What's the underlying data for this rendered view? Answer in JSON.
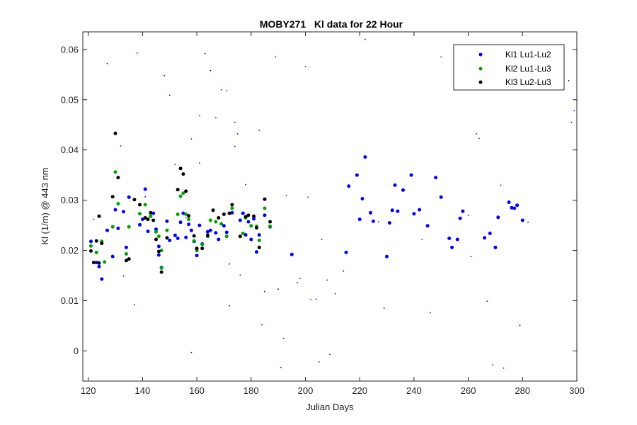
{
  "chart_data": {
    "type": "scatter",
    "title": "MOBY271   Kl data for 22 Hour",
    "xlabel": "Julian Days",
    "ylabel": "Kl (1/m) @ 443 nm",
    "xlim": [
      118,
      300
    ],
    "ylim": [
      -0.006,
      0.0635
    ],
    "xticks": [
      120,
      140,
      160,
      180,
      200,
      220,
      240,
      260,
      280,
      300
    ],
    "yticks": [
      0,
      0.01,
      0.02,
      0.03,
      0.04,
      0.05,
      0.06
    ],
    "xtick_labels": [
      "120",
      "140",
      "160",
      "180",
      "200",
      "220",
      "240",
      "260",
      "280",
      "300"
    ],
    "ytick_labels": [
      "0",
      "0.01",
      "0.02",
      "0.03",
      "0.04",
      "0.05",
      "0.06"
    ],
    "grid": false,
    "legend_position": "top-right",
    "series": [
      {
        "name": "Kl1 Lu1-Lu2",
        "color": "#0000ff",
        "points": [
          [
            121,
            0.0218
          ],
          [
            123,
            0.0176
          ],
          [
            124,
            0.0168
          ],
          [
            125,
            0.0143
          ],
          [
            127,
            0.024
          ],
          [
            129,
            0.0188
          ],
          [
            130,
            0.0281
          ],
          [
            131,
            0.0244
          ],
          [
            133,
            0.0277
          ],
          [
            134,
            0.0206
          ],
          [
            135,
            0.0306
          ],
          [
            139,
            0.0251
          ],
          [
            140,
            0.0262
          ],
          [
            141,
            0.0322
          ],
          [
            142,
            0.0238
          ],
          [
            144,
            0.0274
          ],
          [
            145,
            0.0242
          ],
          [
            146,
            0.0208
          ],
          [
            146,
            0.0191
          ],
          [
            147,
            0.0166
          ],
          [
            149,
            0.0258
          ],
          [
            150,
            0.022
          ],
          [
            152,
            0.023
          ],
          [
            153,
            0.0224
          ],
          [
            154,
            0.0256
          ],
          [
            155,
            0.0274
          ],
          [
            156,
            0.0226
          ],
          [
            157,
            0.0252
          ],
          [
            158,
            0.024
          ],
          [
            159,
            0.0218
          ],
          [
            160,
            0.019
          ],
          [
            161,
            0.025
          ],
          [
            162,
            0.0213
          ],
          [
            164,
            0.0237
          ],
          [
            165,
            0.024
          ],
          [
            167,
            0.0235
          ],
          [
            168,
            0.0222
          ],
          [
            170,
            0.0249
          ],
          [
            171,
            0.0236
          ],
          [
            173,
            0.0275
          ],
          [
            176,
            0.026
          ],
          [
            177,
            0.0274
          ],
          [
            178,
            0.0231
          ],
          [
            179,
            0.0257
          ],
          [
            180,
            0.0222
          ],
          [
            181,
            0.0263
          ],
          [
            182,
            0.0197
          ],
          [
            183,
            0.0231
          ],
          [
            185,
            0.027
          ],
          [
            187,
            0.0247
          ],
          [
            195,
            0.0192
          ],
          [
            215,
            0.0196
          ],
          [
            216,
            0.0328
          ],
          [
            219,
            0.035
          ],
          [
            220,
            0.0262
          ],
          [
            221,
            0.0303
          ],
          [
            222,
            0.0386
          ],
          [
            224,
            0.0275
          ],
          [
            225,
            0.0258
          ],
          [
            230,
            0.0188
          ],
          [
            231,
            0.0255
          ],
          [
            232,
            0.028
          ],
          [
            233,
            0.033
          ],
          [
            234,
            0.0278
          ],
          [
            236,
            0.032
          ],
          [
            239,
            0.035
          ],
          [
            240,
            0.0273
          ],
          [
            242,
            0.0281
          ],
          [
            245,
            0.0249
          ],
          [
            248,
            0.0345
          ],
          [
            250,
            0.0306
          ],
          [
            253,
            0.0224
          ],
          [
            254,
            0.0206
          ],
          [
            256,
            0.0222
          ],
          [
            257,
            0.0264
          ],
          [
            258,
            0.0278
          ],
          [
            266,
            0.0225
          ],
          [
            268,
            0.0234
          ],
          [
            270,
            0.0206
          ],
          [
            271,
            0.0266
          ],
          [
            275,
            0.0296
          ],
          [
            276,
            0.0285
          ],
          [
            277,
            0.0284
          ],
          [
            278,
            0.029
          ],
          [
            280,
            0.026
          ]
        ]
      },
      {
        "name": "Kl2 Lu1-Lu3",
        "color": "#00a000",
        "points": [
          [
            121,
            0.0209
          ],
          [
            123,
            0.0196
          ],
          [
            125,
            0.0218
          ],
          [
            126,
            0.0177
          ],
          [
            129,
            0.0247
          ],
          [
            130,
            0.0356
          ],
          [
            131,
            0.0293
          ],
          [
            134,
            0.0193
          ],
          [
            135,
            0.0247
          ],
          [
            139,
            0.0273
          ],
          [
            141,
            0.0291
          ],
          [
            142,
            0.0262
          ],
          [
            143,
            0.0268
          ],
          [
            145,
            0.0237
          ],
          [
            146,
            0.0228
          ],
          [
            147,
            0.02
          ],
          [
            147,
            0.0165
          ],
          [
            149,
            0.024
          ],
          [
            153,
            0.0272
          ],
          [
            154,
            0.0308
          ],
          [
            155,
            0.0314
          ],
          [
            156,
            0.0272
          ],
          [
            157,
            0.0262
          ],
          [
            159,
            0.0219
          ],
          [
            160,
            0.02
          ],
          [
            162,
            0.0212
          ],
          [
            164,
            0.0228
          ],
          [
            165,
            0.026
          ],
          [
            167,
            0.0257
          ],
          [
            169,
            0.0253
          ],
          [
            171,
            0.0228
          ],
          [
            173,
            0.0284
          ],
          [
            177,
            0.0234
          ],
          [
            178,
            0.0265
          ],
          [
            180,
            0.0249
          ],
          [
            182,
            0.0248
          ],
          [
            183,
            0.022
          ],
          [
            185,
            0.0284
          ],
          [
            187,
            0.0248
          ]
        ]
      },
      {
        "name": "Kl3 Lu2-Lu3",
        "color": "#000000",
        "points": [
          [
            121,
            0.0199
          ],
          [
            122,
            0.0176
          ],
          [
            123,
            0.0219
          ],
          [
            124,
            0.0175
          ],
          [
            124,
            0.0268
          ],
          [
            125,
            0.0214
          ],
          [
            129,
            0.0307
          ],
          [
            130,
            0.0433
          ],
          [
            131,
            0.0345
          ],
          [
            134,
            0.018
          ],
          [
            135,
            0.0183
          ],
          [
            137,
            0.0301
          ],
          [
            139,
            0.0291
          ],
          [
            141,
            0.0265
          ],
          [
            142,
            0.0262
          ],
          [
            143,
            0.0275
          ],
          [
            144,
            0.026
          ],
          [
            145,
            0.0222
          ],
          [
            146,
            0.0198
          ],
          [
            147,
            0.0157
          ],
          [
            149,
            0.0225
          ],
          [
            153,
            0.0321
          ],
          [
            154,
            0.0363
          ],
          [
            155,
            0.0352
          ],
          [
            156,
            0.0318
          ],
          [
            157,
            0.0269
          ],
          [
            159,
            0.0229
          ],
          [
            160,
            0.0204
          ],
          [
            162,
            0.0204
          ],
          [
            164,
            0.023
          ],
          [
            166,
            0.028
          ],
          [
            168,
            0.0265
          ],
          [
            170,
            0.0272
          ],
          [
            172,
            0.0274
          ],
          [
            173,
            0.0291
          ],
          [
            176,
            0.0228
          ],
          [
            178,
            0.0267
          ],
          [
            179,
            0.027
          ],
          [
            181,
            0.0268
          ],
          [
            182,
            0.0245
          ],
          [
            183,
            0.0206
          ],
          [
            185,
            0.0302
          ],
          [
            187,
            0.0257
          ]
        ]
      },
      {
        "name": "",
        "color": "#0000ff",
        "marker": "small",
        "points": [
          [
            122,
            0.0262
          ],
          [
            127,
            0.0572
          ],
          [
            132,
            0.0408
          ],
          [
            133,
            0.0149
          ],
          [
            137,
            0.0092
          ],
          [
            138,
            0.0593
          ],
          [
            141,
            0.0307
          ],
          [
            148,
            0.0548
          ],
          [
            150,
            0.0509
          ],
          [
            152,
            0.0371
          ],
          [
            156,
            0.0265
          ],
          [
            158,
            -0.0003
          ],
          [
            158,
            0.0422
          ],
          [
            161,
            0.0468
          ],
          [
            161,
            0.0374
          ],
          [
            163,
            0.0592
          ],
          [
            165,
            0.0558
          ],
          [
            167,
            0.0464
          ],
          [
            169,
            0.052
          ],
          [
            171,
            0.0518
          ],
          [
            172,
            0.0173
          ],
          [
            172,
            0.009
          ],
          [
            174,
            0.0455
          ],
          [
            174,
            0.0407
          ],
          [
            175,
            0.0432
          ],
          [
            176,
            0.0151
          ],
          [
            178,
            0.0331
          ],
          [
            183,
            0.0439
          ],
          [
            184,
            0.0052
          ],
          [
            185,
            0.0118
          ],
          [
            189,
            0.0585
          ],
          [
            190,
            0.0123
          ],
          [
            191,
            -0.0033
          ],
          [
            192,
            0.0025
          ],
          [
            193,
            0.0309
          ],
          [
            197,
            0.0136
          ],
          [
            198,
            0.0144
          ],
          [
            200,
            0.0566
          ],
          [
            201,
            0.0306
          ],
          [
            202,
            0.0102
          ],
          [
            204,
            0.0103
          ],
          [
            205,
            -0.0022
          ],
          [
            206,
            0.0222
          ],
          [
            208,
            0.0141
          ],
          [
            209,
            -0.0007
          ],
          [
            211,
            0.0114
          ],
          [
            214,
            0.0159
          ],
          [
            222,
            0.062
          ],
          [
            227,
            0.0257
          ],
          [
            229,
            0.0085
          ],
          [
            243,
            0.0222
          ],
          [
            246,
            0.0076
          ],
          [
            250,
            0.0585
          ],
          [
            260,
            0.027
          ],
          [
            261,
            0.0188
          ],
          [
            263,
            0.0432
          ],
          [
            264,
            0.0423
          ],
          [
            267,
            0.0099
          ],
          [
            269,
            -0.0028
          ],
          [
            272,
            0.033
          ],
          [
            273,
            -0.0034
          ],
          [
            279,
            0.0051
          ],
          [
            282,
            0.0256
          ],
          [
            297,
            0.0538
          ],
          [
            298,
            0.0455
          ],
          [
            299,
            0.0478
          ]
        ]
      }
    ]
  }
}
